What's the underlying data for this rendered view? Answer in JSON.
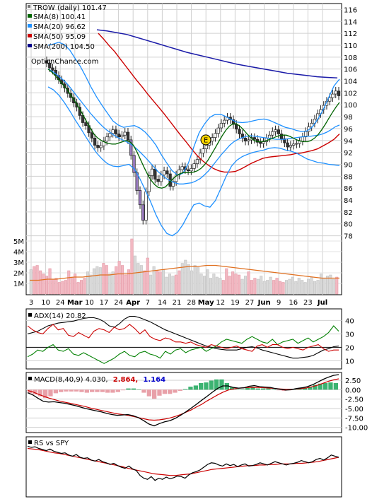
{
  "chart_data": [
    {
      "type": "line",
      "panel": "price",
      "ticker_label": "TROW (daily) 101.47",
      "watermark": "OptionChance.com",
      "legend": [
        {
          "label": "SMA(8) 100.41",
          "color": "#006400"
        },
        {
          "label": "SMA(20) 96.62",
          "color": "#1e90ff"
        },
        {
          "label": "SMA(50) 95.09",
          "color": "#cc0000"
        },
        {
          "label": "SMA(200) 104.50",
          "color": "#00008b"
        }
      ],
      "y_ticks": [
        "116",
        "114",
        "112",
        "110",
        "108",
        "106",
        "104",
        "102",
        "100",
        "98",
        "96",
        "94",
        "92",
        "90",
        "88",
        "86",
        "84",
        "82",
        "80",
        "78"
      ],
      "ylim": [
        77,
        117
      ],
      "volume_ticks": [
        "5M",
        "4M",
        "3M",
        "2M",
        "1M"
      ],
      "x_ticks": [
        "3",
        "10",
        "24",
        "Mar",
        "10",
        "17",
        "24",
        "Apr",
        "7",
        "14",
        "21",
        "28",
        "May",
        "12",
        "19",
        "27",
        "Jun",
        "9",
        "16",
        "23",
        "Jul"
      ],
      "event_marker": "E",
      "close": [
        107,
        106.2,
        105.8,
        104.9,
        104.2,
        103.5,
        102.8,
        101.9,
        101.2,
        100.3,
        99.6,
        98.2,
        97,
        96.5,
        95.3,
        94.4,
        93.2,
        92.8,
        93.1,
        93.9,
        94.6,
        95.2,
        95.8,
        95.1,
        94.6,
        94.9,
        95.4,
        94.1,
        91.5,
        88.6,
        85.6,
        83.2,
        80.6,
        85.4,
        88.1,
        89.2,
        87.5,
        87.1,
        88.2,
        88.9,
        88.4,
        86.3,
        87.1,
        88.2,
        89.1,
        89.6,
        89.1,
        88.9,
        89.3,
        90.1,
        90.8,
        91.9,
        92.6,
        93.2,
        93.9,
        94.5,
        95.2,
        96.1,
        96.9,
        97.4,
        97.9,
        97.5,
        96.7,
        95.9,
        95.1,
        94.4,
        93.9,
        94.1,
        94.5,
        94.2,
        93.7,
        93.5,
        93.8,
        94.4,
        94.9,
        95.5,
        95.8,
        95.1,
        94.3,
        93.6,
        92.9,
        93.2,
        93.4,
        93.5,
        93.9,
        94.6,
        95.5,
        96.3,
        96.9,
        97.6,
        98.5,
        99.2,
        99.9,
        100.6,
        101.2,
        101.8,
        102.3,
        101.5
      ],
      "volume_millions": [
        2.3,
        2.6,
        2.7,
        2.2,
        1.9,
        1.7,
        2.4,
        1.4,
        1.5,
        1.1,
        1.2,
        1.3,
        2.2,
        1.6,
        1.9,
        1.1,
        1.3,
        1.5,
        2.1,
        1.8,
        2.4,
        2.6,
        2.5,
        2.9,
        2.7,
        1.9,
        2.1,
        2.6,
        3.1,
        2.7,
        1.8,
        2.3,
        5.2,
        3.6,
        2.9,
        2.7,
        2.2,
        3.4,
        1.8,
        2.6,
        2.2,
        2.1,
        2.3,
        1.6,
        1.9,
        1.7,
        1.8,
        2.2,
        2.9,
        3.2,
        2.8,
        2.2,
        2.7,
        2.5,
        1.9,
        1.7,
        2.3,
        1.5,
        1.9,
        1.6,
        1.5,
        1.3,
        2.4,
        1.7,
        2.1,
        1.9,
        1.8,
        1.4,
        1.7,
        2.1,
        1.3,
        1.5,
        1.4,
        1.7,
        1.2,
        1.3,
        1.6,
        1.3,
        1.5,
        1.2,
        1.1,
        1.3,
        1.4,
        1.6,
        1.2,
        1.5,
        1.3,
        1.1,
        1.4,
        1.6,
        1.2,
        1.3,
        1.9,
        1.5,
        1.7,
        1.8,
        1.4,
        1.6
      ],
      "volume_avg_millions": [
        1.3,
        1.3,
        1.4,
        1.4,
        1.5,
        1.6,
        1.6,
        1.7,
        1.8,
        1.8,
        1.9,
        1.9,
        2.0,
        2.1,
        2.2,
        2.3,
        2.4,
        2.5,
        2.6,
        2.6,
        2.7,
        2.7,
        2.6,
        2.5,
        2.4,
        2.3,
        2.2,
        2.1,
        2.0,
        1.9,
        1.8,
        1.7,
        1.6,
        1.5,
        1.5,
        1.5
      ],
      "sma8": [
        106,
        105.5,
        104.9,
        104.2,
        103.5,
        102.8,
        102.0,
        101.1,
        100.2,
        99.2,
        98.1,
        97.0,
        96.0,
        95.0,
        94.4,
        94.0,
        93.7,
        93.5,
        93.4,
        93.4,
        93.6,
        93.8,
        94.0,
        93.8,
        93.2,
        92.1,
        90.8,
        89.5,
        88.3,
        87.3,
        86.6,
        86.1,
        86.0,
        86.2,
        86.8,
        87.5,
        88.0,
        88.4,
        88.6,
        88.6,
        88.6,
        88.7,
        88.9,
        89.3,
        89.9,
        90.7,
        91.7,
        92.7,
        93.8,
        94.8,
        95.7,
        96.4,
        96.8,
        96.8,
        96.4,
        95.8,
        95.1,
        94.5,
        94.0,
        93.8,
        93.8,
        93.9,
        94.1,
        94.3,
        94.6,
        94.8,
        94.9,
        94.9,
        94.7,
        94.4,
        94.1,
        93.9,
        93.8,
        93.8,
        94.0,
        94.4,
        95.0,
        95.8,
        96.7,
        97.7,
        98.7,
        99.6,
        100.4
      ],
      "sma20": [
        106,
        105.6,
        105.1,
        104.5,
        103.9,
        103.1,
        102.2,
        101.3,
        100.4,
        99.5,
        98.6,
        97.8,
        97.0,
        96.3,
        95.7,
        95.2,
        94.7,
        94.3,
        94.0,
        93.6,
        93.2,
        92.6,
        91.9,
        91.2,
        90.4,
        89.6,
        88.8,
        88.2,
        87.6,
        87.2,
        86.9,
        86.7,
        86.7,
        86.8,
        86.9,
        87.2,
        87.6,
        88.2,
        88.9,
        89.8,
        90.7,
        91.6,
        92.4,
        93.2,
        93.8,
        94.2,
        94.5,
        94.7,
        94.8,
        94.7,
        94.6,
        94.5,
        94.4,
        94.3,
        94.2,
        94.2,
        94.2,
        94.3,
        94.4,
        94.5,
        94.6,
        94.7,
        94.7,
        94.8,
        94.9,
        95.1,
        95.4,
        95.8,
        96.3,
        96.6
      ],
      "sma50": [
        112,
        111,
        109.9,
        108.9,
        107.7,
        106.5,
        105.3,
        104.1,
        103,
        101.8,
        100.7,
        99.6,
        98.5,
        97.3,
        96.1,
        94.9,
        93.8,
        92.6,
        91.5,
        90.6,
        89.9,
        89.3,
        88.9,
        88.7,
        88.7,
        88.8,
        89.2,
        89.7,
        90.2,
        90.6,
        91.0,
        91.2,
        91.3,
        91.4,
        91.5,
        91.6,
        91.8,
        91.9,
        92.1,
        92.3,
        92.6,
        93.1,
        93.6,
        94.2,
        95.1
      ],
      "sma200": [
        112.6,
        112.4,
        112.1,
        111.8,
        111.3,
        110.8,
        110.3,
        109.8,
        109.3,
        108.8,
        108.4,
        108.0,
        107.6,
        107.2,
        106.8,
        106.5,
        106.2,
        105.9,
        105.6,
        105.3,
        105.1,
        104.9,
        104.7,
        104.6,
        104.5
      ],
      "bb_upper": [
        110,
        110.2,
        110.5,
        110.1,
        109.2,
        107.8,
        106.4,
        104.7,
        102.9,
        101.3,
        99.9,
        98.6,
        97.3,
        96.6,
        96.2,
        96.4,
        96.5,
        96.1,
        95.4,
        94.4,
        93.2,
        91.6,
        90.2,
        88.9,
        88.2,
        88.5,
        90.2,
        92.9,
        95.3,
        96.8,
        97.9,
        98.4,
        98.4,
        98.0,
        97.5,
        97.1,
        97.0,
        97.1,
        97.3,
        97.5,
        97.6,
        97.4,
        97.0,
        96.6,
        96.2,
        96.0,
        95.7,
        95.5,
        95.6,
        96.3,
        97.6,
        99.2,
        101.2,
        103.2,
        104.3
      ],
      "bb_lower": [
        103,
        102.5,
        101.6,
        100.4,
        99.0,
        97.5,
        96.1,
        94.6,
        93.2,
        91.9,
        90.9,
        90.1,
        89.7,
        89.6,
        89.8,
        90.0,
        89.2,
        87.6,
        85.7,
        83.7,
        81.5,
        79.7,
        78.4,
        78.0,
        78.6,
        79.9,
        81.6,
        83.2,
        83.5,
        83.0,
        82.8,
        83.9,
        85.9,
        88.0,
        89.7,
        90.7,
        91.3,
        91.7,
        92.0,
        92.2,
        92.4,
        92.7,
        92.8,
        92.7,
        92.4,
        92.2,
        91.9,
        91.4,
        90.9,
        90.6,
        90.3,
        90.2,
        90.0,
        89.9,
        89.8
      ]
    },
    {
      "type": "line",
      "panel": "adx",
      "legend": [
        {
          "label": "ADX(14) 20.82",
          "color": "#000000"
        }
      ],
      "y_ticks": [
        "40",
        "30",
        "20",
        "10"
      ],
      "ylim": [
        5,
        47
      ],
      "series": [
        {
          "name": "ADX",
          "color": "#000000",
          "values": [
            30,
            31,
            32,
            34,
            36,
            37,
            38,
            38.5,
            39,
            39.5,
            40.5,
            41.5,
            42,
            42,
            41,
            39,
            36,
            35,
            37.5,
            41,
            43,
            43,
            42,
            40.5,
            39,
            37,
            35,
            33,
            31.5,
            30,
            28.5,
            27,
            25.5,
            24,
            22.5,
            21,
            20,
            19,
            18.5,
            18,
            18,
            18,
            19,
            20,
            20.5,
            19.5,
            18,
            17,
            16,
            15,
            14,
            13,
            12,
            12,
            12.5,
            13,
            14,
            16,
            18,
            19,
            20.5,
            21
          ]
        },
        {
          "name": "+DI",
          "color": "#008000",
          "values": [
            13,
            15,
            18,
            17,
            20,
            22,
            18,
            17,
            19,
            15,
            14,
            16,
            14,
            12,
            10,
            8,
            10,
            12,
            15,
            17,
            14,
            13,
            16,
            17,
            15,
            14,
            12,
            17,
            15,
            18,
            19,
            16,
            18,
            19,
            20,
            17,
            19,
            21,
            24,
            26,
            25,
            24,
            23,
            26,
            28,
            26,
            24,
            23,
            26,
            22,
            24,
            25,
            26,
            23,
            25,
            27,
            24,
            26,
            28,
            31,
            36,
            32
          ]
        },
        {
          "name": "-DI",
          "color": "#cc0000",
          "values": [
            36,
            33,
            31,
            30,
            34,
            37,
            33,
            34,
            29,
            28,
            31,
            29,
            27,
            32,
            34,
            33,
            31,
            35,
            33,
            34,
            37,
            34,
            30,
            33,
            28,
            26,
            25,
            27,
            26,
            24,
            24,
            23,
            24,
            22,
            21,
            20,
            22,
            21,
            20,
            19,
            20,
            21,
            19,
            18,
            17,
            21,
            22,
            20,
            22,
            22,
            20,
            19,
            20,
            19,
            18,
            20,
            21,
            22,
            19,
            17,
            18,
            18
          ]
        }
      ]
    },
    {
      "type": "line",
      "panel": "macd",
      "legend": [
        {
          "label": "MACD(8,40,9) 4.030,",
          "color": "#000000"
        },
        {
          "label": "2.864,",
          "color": "#cc0000"
        },
        {
          "label": "1.164",
          "color": "#0000cc"
        }
      ],
      "y_ticks": [
        "2.50",
        "0.00",
        "-2.50",
        "-5.00",
        "-7.50",
        "-10.00"
      ],
      "ylim": [
        -11,
        4
      ],
      "series": [
        {
          "name": "MACD",
          "color": "#000000",
          "values": [
            -0.8,
            -1.4,
            -2.3,
            -3.1,
            -3.3,
            -3.2,
            -3.4,
            -3.6,
            -3.9,
            -4.2,
            -4.6,
            -5.0,
            -5.3,
            -5.6,
            -5.9,
            -6.3,
            -6.6,
            -6.8,
            -6.7,
            -6.6,
            -6.9,
            -7.4,
            -8.2,
            -9.1,
            -9.6,
            -9.0,
            -8.5,
            -8.2,
            -7.6,
            -6.8,
            -5.9,
            -4.9,
            -3.9,
            -2.8,
            -1.8,
            -0.7,
            0.3,
            1.0,
            1.0,
            0.6,
            0.4,
            0.5,
            0.9,
            1.1,
            0.8,
            0.7,
            0.6,
            0.3,
            0.1,
            -0.1,
            0.0,
            0.3,
            0.5,
            0.8,
            1.3,
            2.0,
            2.7,
            3.3,
            3.8,
            4.0
          ]
        },
        {
          "name": "Signal",
          "color": "#cc0000",
          "values": [
            -0.2,
            -0.6,
            -1.2,
            -1.7,
            -2.2,
            -2.6,
            -3.0,
            -3.3,
            -3.6,
            -3.9,
            -4.2,
            -4.5,
            -4.9,
            -5.2,
            -5.5,
            -5.8,
            -6.1,
            -6.4,
            -6.6,
            -6.8,
            -7.1,
            -7.4,
            -7.7,
            -8.0,
            -8.1,
            -8.0,
            -7.8,
            -7.5,
            -7.1,
            -6.6,
            -6.0,
            -5.4,
            -4.6,
            -3.9,
            -3.0,
            -2.2,
            -1.4,
            -0.7,
            -0.1,
            0.2,
            0.4,
            0.5,
            0.6,
            0.6,
            0.6,
            0.5,
            0.4,
            0.3,
            0.2,
            0.1,
            0.1,
            0.2,
            0.3,
            0.5,
            0.8,
            1.2,
            1.7,
            2.2,
            2.6,
            2.9
          ]
        },
        {
          "name": "Histogram",
          "color": "#3cb371",
          "values": [
            -0.6,
            -0.8,
            -1.1,
            -1.4,
            -1.1,
            -0.6,
            -0.4,
            -0.3,
            -0.3,
            -0.3,
            -0.4,
            -0.5,
            -0.4,
            -0.4,
            -0.4,
            -0.5,
            -0.5,
            -0.4,
            -0.1,
            0.2,
            0.2,
            0.0,
            -0.5,
            -1.1,
            -1.5,
            -1.0,
            -0.7,
            -0.7,
            -0.5,
            -0.2,
            0.1,
            0.5,
            0.7,
            1.1,
            1.2,
            1.5,
            1.7,
            1.7,
            1.1,
            0.4,
            0.0,
            0.0,
            0.3,
            0.5,
            0.2,
            0.2,
            0.2,
            0.0,
            -0.1,
            -0.2,
            -0.1,
            0.1,
            0.2,
            0.3,
            0.5,
            0.8,
            1.0,
            1.1,
            1.2,
            1.1
          ]
        }
      ]
    },
    {
      "type": "line",
      "panel": "rs",
      "legend": [
        {
          "label": "RS vs SPY",
          "color": "#000000"
        }
      ],
      "series": [
        {
          "name": "RS",
          "color": "#000000",
          "values": [
            88,
            86,
            87,
            84,
            82,
            80,
            83,
            79,
            77,
            75,
            76,
            72,
            70,
            73,
            68,
            66,
            67,
            63,
            61,
            64,
            60,
            58,
            55,
            57,
            53,
            50,
            48,
            52,
            47,
            44,
            35,
            30,
            28,
            33,
            26,
            30,
            28,
            32,
            29,
            31,
            34,
            33,
            30,
            36,
            40,
            42,
            45,
            50,
            55,
            58,
            57,
            54,
            52,
            56,
            53,
            55,
            51,
            54,
            56,
            52,
            53,
            55,
            58,
            56,
            54,
            57,
            60,
            58,
            56,
            54,
            56,
            57,
            59,
            62,
            60,
            58,
            60,
            64,
            66,
            63,
            67,
            72,
            70,
            68
          ]
        },
        {
          "name": "RS avg",
          "color": "#cc0000",
          "values": [
            84,
            83,
            82,
            80,
            78,
            76,
            75,
            73,
            71,
            69,
            67,
            65,
            63,
            61,
            59,
            57,
            55,
            53,
            51,
            48,
            46,
            44,
            42,
            40,
            38,
            37,
            36,
            35,
            35,
            36,
            37,
            38,
            40,
            42,
            44,
            46,
            47,
            48,
            49,
            50,
            51,
            52,
            53,
            53,
            54,
            54,
            55,
            55,
            56,
            56,
            56,
            57,
            57,
            58,
            59,
            60,
            62,
            64,
            66,
            68
          ]
        }
      ]
    }
  ]
}
